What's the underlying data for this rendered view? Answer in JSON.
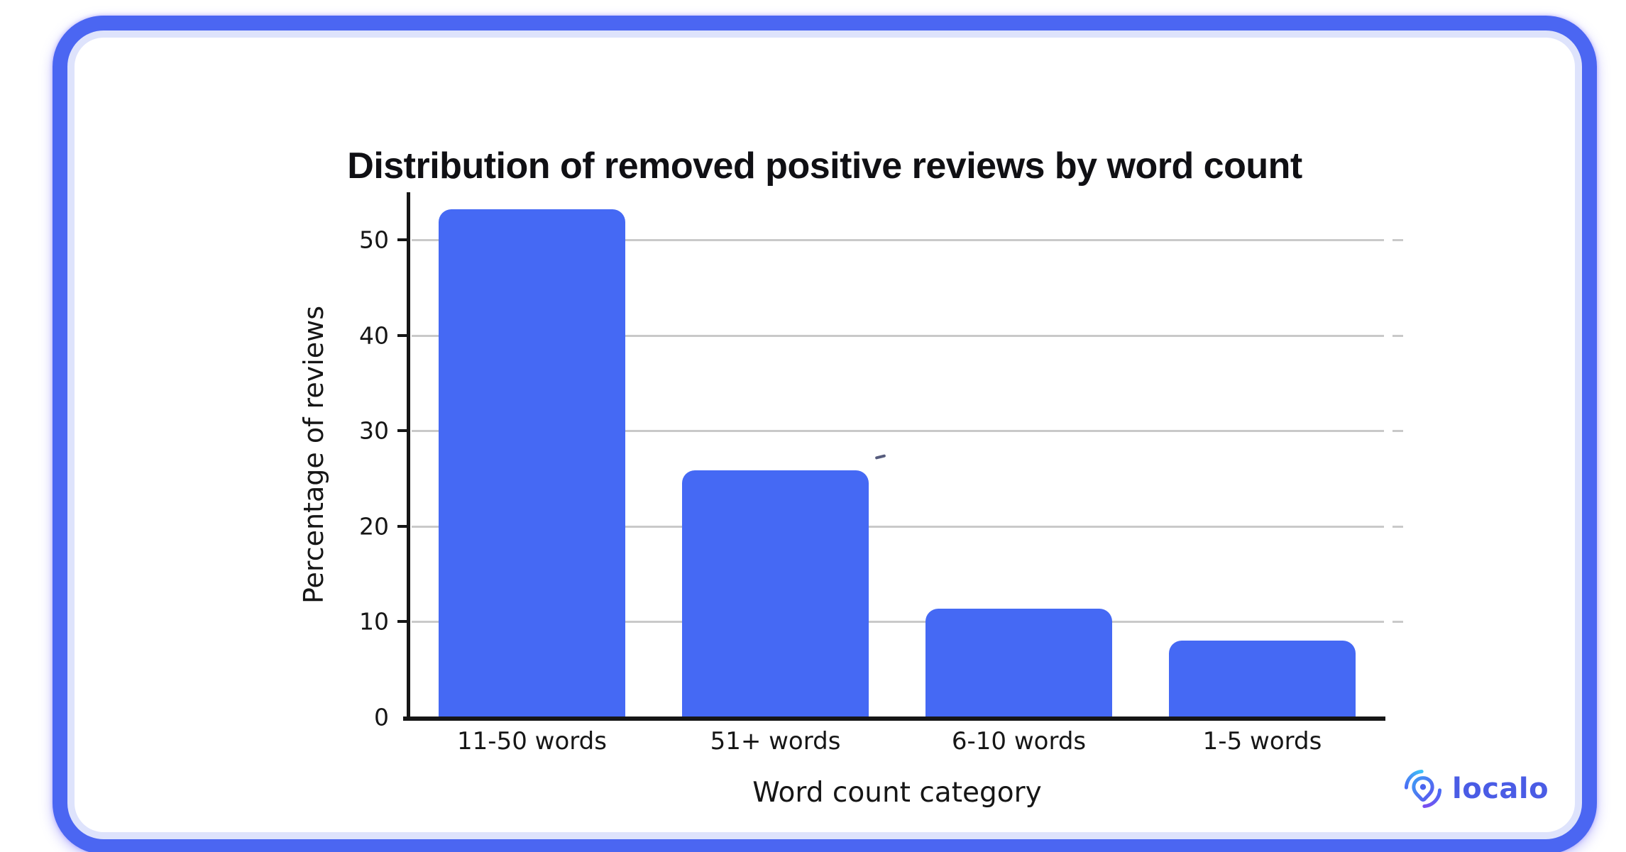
{
  "chart_data": {
    "type": "bar",
    "title": "Distribution of removed positive reviews by word count",
    "categories": [
      "11-50 words",
      "51+ words",
      "6-10 words",
      "1-5 words"
    ],
    "values": [
      53.2,
      25.9,
      11.4,
      8.0
    ],
    "xlabel": "Word count category",
    "ylabel": "Percentage of reviews",
    "ylim": [
      0,
      55
    ],
    "yticks": [
      0,
      10,
      20,
      30,
      40,
      50
    ],
    "grid": "horizontal",
    "legend": "none",
    "bar_corner_style": "rounded-top"
  },
  "branding": {
    "logo_text": "localo",
    "logo_icon": "localo-pin-icon"
  },
  "colors": {
    "bar": "#4569F4",
    "card_border": "#4B66F2",
    "card_inner_ring": "#DEE3FC",
    "card_bg": "#FFFFFF",
    "gridline": "#C9C9C9",
    "axis": "#161616",
    "text": "#161616",
    "logo_text": "#4A5CE5",
    "logo_gradient_start": "#3EC1F6",
    "logo_gradient_mid": "#4A6CF5",
    "logo_gradient_end": "#7B4DF0"
  }
}
